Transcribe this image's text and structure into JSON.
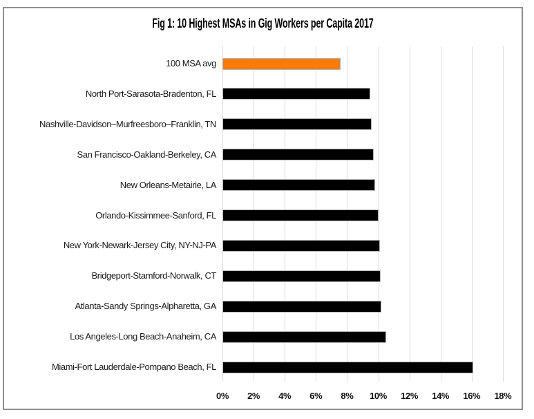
{
  "colors": {
    "bar": "#000000",
    "highlight": "#FA7B05",
    "grid": "#dcdcdc",
    "frame": "#8f8f8f",
    "text": "#1a1a1a",
    "background": "#ffffff"
  },
  "chart_data": {
    "type": "bar",
    "orientation": "horizontal",
    "title": "Fig 1: 10 Highest MSAs in Gig Workers per Capita 2017",
    "xlabel": "",
    "ylabel": "",
    "categories": [
      "100 MSA avg",
      "North Port-Sarasota-Bradenton, FL",
      "Nashville-Davidson–Murfreesboro–Franklin, TN",
      "San Francisco-Oakland-Berkeley, CA",
      "New Orleans-Metairie, LA",
      "Orlando-Kissimmee-Sanford, FL",
      "New York-Newark-Jersey City, NY-NJ-PA",
      "Bridgeport-Stamford-Norwalk, CT",
      "Atlanta-Sandy Springs-Alpharetta, GA",
      "Los Angeles-Long Beach-Anaheim, CA",
      "Miami-Fort Lauderdale-Pompano Beach, FL"
    ],
    "values": [
      7.6,
      9.5,
      9.6,
      9.7,
      9.8,
      10.0,
      10.1,
      10.15,
      10.2,
      10.5,
      16.1
    ],
    "value_unit": "%",
    "highlight_index": 0,
    "x_tick_labels": [
      "0%",
      "2%",
      "4%",
      "6%",
      "8%",
      "10%",
      "12%",
      "14%",
      "16%",
      "18%"
    ],
    "xlim": [
      0,
      18
    ],
    "grid": "vertical",
    "legend": "none"
  }
}
